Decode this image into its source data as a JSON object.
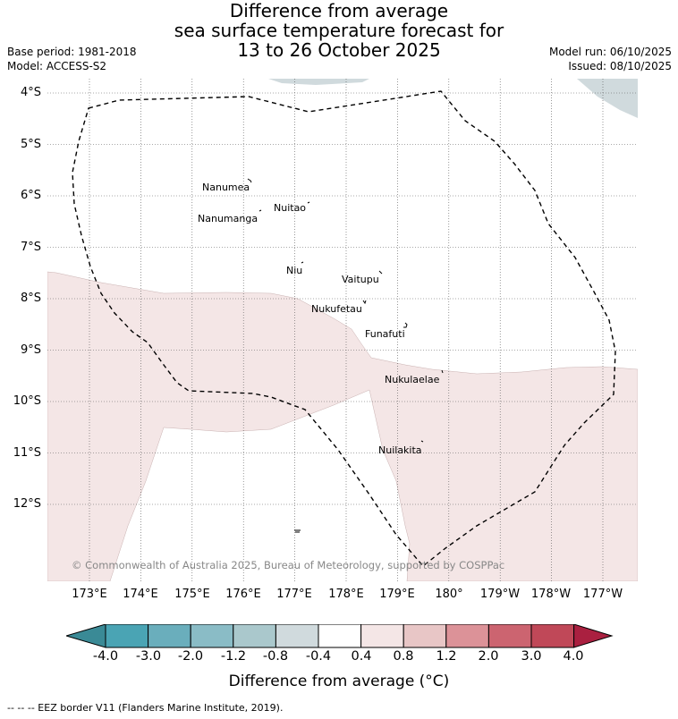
{
  "header": {
    "title_lines": [
      "Difference from average",
      "sea surface temperature forecast for",
      "13 to 26 October 2025"
    ],
    "base_period": "Base period: 1981-2018",
    "model": "Model: ACCESS-S2",
    "model_run": "Model run: 06/10/2025",
    "issued": "Issued: 08/10/2025"
  },
  "map": {
    "lat_labels": [
      "4°S",
      "5°S",
      "6°S",
      "7°S",
      "8°S",
      "9°S",
      "10°S",
      "11°S",
      "12°S"
    ],
    "lon_labels": [
      "173°E",
      "174°E",
      "175°E",
      "176°E",
      "177°E",
      "178°E",
      "179°E",
      "180°",
      "179°W",
      "178°W",
      "177°W"
    ],
    "islands": [
      {
        "name": "Nanumea"
      },
      {
        "name": "Nuitao"
      },
      {
        "name": "Nanumanga"
      },
      {
        "name": "Niu"
      },
      {
        "name": "Vaitupu"
      },
      {
        "name": "Nukufetau"
      },
      {
        "name": "Funafuti"
      },
      {
        "name": "Nukulaelae"
      },
      {
        "name": "Nuilakita"
      }
    ],
    "copyright": "© Commonwealth of Australia 2025, Bureau of Meteorology, supported by COSPPac"
  },
  "colorbar": {
    "ticks": [
      "-4.0",
      "-3.0",
      "-2.0",
      "-1.2",
      "-0.8",
      "-0.4",
      "0.4",
      "0.8",
      "1.2",
      "2.0",
      "3.0",
      "4.0"
    ],
    "colors": [
      "#3a8a96",
      "#4aa4b4",
      "#6aaebc",
      "#8abcc6",
      "#aac8cc",
      "#d0dadd",
      "#ffffff",
      "#f4e6e6",
      "#e8c6c6",
      "#dc9298",
      "#cc6470",
      "#c04858",
      "#aa2040"
    ],
    "label": "Difference from average (°C)"
  },
  "footer": {
    "legend_text": "--  --  -- EEZ border V11 (Flanders Marine Institute, 2019)."
  }
}
